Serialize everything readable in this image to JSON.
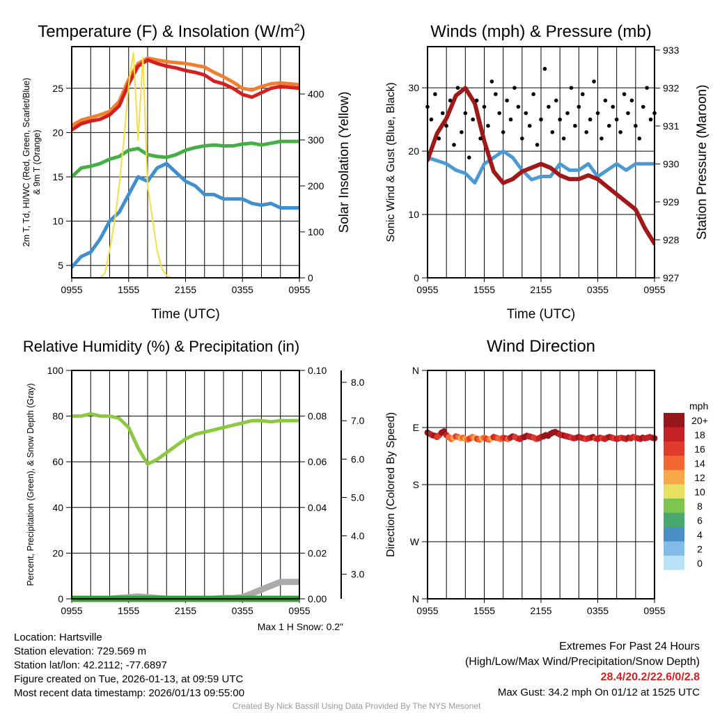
{
  "chart_data": [
    {
      "type": "line",
      "title": "Temperature (F) & Insolation (W/m²)",
      "title_main": "Temperature (F) & Insolation (W/m",
      "title_sup": "2",
      "title_end": ")",
      "xlabel": "Time (UTC)",
      "ylabel_line1": "2m T, Td, HI/WC (Red, Green, Scarlet/Blue)",
      "ylabel_line2": "& 9m T (Orange)",
      "y2label": "Solar Insolation (Yellow)",
      "xticks": [
        "0955",
        "1555",
        "2155",
        "0355",
        "0955"
      ],
      "yticks": [
        5,
        10,
        15,
        20,
        25
      ],
      "y2ticks": [
        0,
        100,
        200,
        300,
        400
      ],
      "ylim": [
        3.6,
        29.7
      ],
      "y2lim": [
        0,
        503
      ],
      "xlim": [
        0,
        24
      ],
      "series": [
        {
          "name": "9m T",
          "color": "#f08030",
          "axis": "left",
          "x_step": 1,
          "values": [
            20.8,
            21.4,
            21.7,
            22,
            22.4,
            23.5,
            26,
            27.8,
            28.4,
            28.2,
            28,
            27.9,
            27.8,
            27.6,
            27.4,
            26.8,
            26.3,
            25.7,
            25,
            24.8,
            25.2,
            25.5,
            25.6,
            25.5,
            25.4
          ]
        },
        {
          "name": "2m T",
          "color": "#d42020",
          "axis": "left",
          "x_step": 1,
          "values": [
            20.3,
            21,
            21.3,
            21.5,
            22,
            23,
            25.5,
            27.5,
            28.2,
            27.8,
            27.5,
            27.3,
            27,
            26.8,
            26.5,
            25.8,
            25.5,
            25,
            24.3,
            24,
            24.5,
            25,
            25.2,
            25.1,
            25
          ]
        },
        {
          "name": "Td",
          "color": "#44b044",
          "axis": "left",
          "x_step": 1,
          "values": [
            15,
            16,
            16.2,
            16.5,
            17,
            17.3,
            18,
            18.2,
            17.5,
            17.3,
            17.2,
            17.5,
            18,
            18.3,
            18.5,
            18.6,
            18.5,
            18.5,
            18.7,
            18.8,
            18.6,
            18.8,
            19,
            19,
            19
          ]
        },
        {
          "name": "WC",
          "color": "#4090d0",
          "axis": "left",
          "x_step": 1,
          "values": [
            4.8,
            6,
            6.5,
            8,
            10,
            11,
            13,
            15,
            14.5,
            16,
            16.5,
            15.5,
            14.5,
            14,
            13,
            13,
            12.5,
            12.5,
            12.5,
            12,
            11.8,
            12,
            11.5,
            11.5,
            11.5
          ]
        },
        {
          "name": "Solar",
          "color": "#f4e040",
          "axis": "right",
          "x_step": 0.5,
          "values": [
            0,
            0,
            0,
            0,
            0,
            0,
            0,
            10,
            60,
            120,
            200,
            300,
            420,
            490,
            300,
            480,
            200,
            130,
            60,
            20,
            5,
            0,
            0,
            0,
            0,
            0,
            0,
            0,
            0,
            0,
            0,
            0,
            0,
            0,
            0,
            0,
            0,
            0,
            0,
            0,
            0,
            0,
            0,
            0,
            0,
            0,
            0,
            0,
            0
          ]
        }
      ]
    },
    {
      "type": "line",
      "title": "Winds (mph) & Pressure (mb)",
      "xlabel": "Time (UTC)",
      "ylabel": "Sonic Wind & Gust (Blue, Black)",
      "y2label": "Station Pressure (Maroon)",
      "xticks": [
        "0955",
        "1555",
        "2155",
        "0355",
        "0955"
      ],
      "yticks": [
        0,
        10,
        20,
        30
      ],
      "y2ticks": [
        927,
        928,
        929,
        930,
        931,
        932,
        933
      ],
      "ylim": [
        0,
        36.5
      ],
      "y2lim": [
        927,
        933.09
      ],
      "xlim": [
        0,
        24
      ],
      "series": [
        {
          "name": "Sonic Wind",
          "color": "#4a9ad6",
          "axis": "left",
          "x_step": 1,
          "values": [
            19,
            18.5,
            18,
            17,
            16.5,
            15,
            18,
            19,
            20,
            19,
            17,
            15.5,
            16,
            16,
            18,
            17,
            17,
            18,
            16,
            17,
            18,
            17,
            18,
            18,
            18
          ]
        },
        {
          "name": "Pressure",
          "color": "#a01818",
          "axis": "right",
          "x_step": 1,
          "values": [
            930.1,
            930.8,
            931.2,
            931.8,
            932,
            931.6,
            930.6,
            929.8,
            929.5,
            929.6,
            929.8,
            929.9,
            930,
            929.9,
            929.7,
            929.6,
            929.6,
            929.7,
            929.6,
            929.4,
            929.2,
            929,
            928.8,
            928.3,
            927.9
          ]
        },
        {
          "name": "Gust",
          "color": "#000000",
          "axis": "left",
          "kind": "scatter",
          "x_step": 0.4,
          "values": [
            27,
            25,
            29,
            22,
            26,
            24,
            28,
            21,
            30,
            23,
            26,
            19,
            25,
            28,
            22,
            27,
            24,
            31,
            29,
            26,
            23,
            28,
            25,
            30,
            27,
            22,
            26,
            24,
            29,
            21,
            25,
            33,
            27,
            23,
            28,
            25,
            22,
            26,
            30,
            24,
            27,
            29,
            23,
            25,
            31,
            26,
            22,
            28,
            24,
            27,
            25,
            23,
            29,
            26,
            28,
            24,
            22,
            27,
            30,
            25,
            26
          ]
        }
      ]
    },
    {
      "type": "line",
      "title": "Relative Humidity (%) & Precipitation (in)",
      "ylabel": "Percent, Precipitation (Green), & Snow Depth (Gray)",
      "xticks": [
        "0955",
        "1555",
        "2155",
        "0355",
        "0955"
      ],
      "yticks": [
        0,
        20,
        40,
        60,
        80,
        100
      ],
      "y2ticks": [
        "0.00",
        "0.02",
        "0.04",
        "0.06",
        "0.08",
        "0.10"
      ],
      "y3ticks": [
        "3.0",
        "4.0",
        "5.0",
        "6.0",
        "7.0",
        "8.0"
      ],
      "ylim": [
        0,
        100
      ],
      "y2lim": [
        0,
        0.1
      ],
      "y3lim": [
        2.36,
        8.31
      ],
      "xlim": [
        0,
        24
      ],
      "note": "Max 1 H Snow: 0.2\"",
      "series": [
        {
          "name": "RH",
          "color": "#8cc840",
          "axis": "left",
          "x_step": 1,
          "values": [
            80,
            80,
            81,
            80,
            80,
            79,
            75,
            66,
            59,
            61,
            64,
            67,
            70,
            72,
            73,
            74,
            75,
            76,
            77,
            78,
            78,
            77.5,
            78,
            78,
            78
          ]
        },
        {
          "name": "Snow Depth",
          "color": "#aaaaaa",
          "axis": "y3",
          "x_step": 1,
          "values": [
            2.36,
            2.36,
            2.36,
            2.36,
            2.36,
            2.38,
            2.4,
            2.42,
            2.4,
            2.38,
            2.36,
            2.36,
            2.36,
            2.36,
            2.36,
            2.36,
            2.38,
            2.38,
            2.4,
            2.5,
            2.6,
            2.7,
            2.8,
            2.8,
            2.8
          ]
        },
        {
          "name": "Precipitation",
          "color": "#30a030",
          "axis": "right",
          "x_step": 1,
          "values": [
            0,
            0,
            0,
            0,
            0,
            0,
            0,
            0,
            0,
            0,
            0,
            0,
            0,
            0,
            0,
            0,
            0,
            0,
            0,
            0,
            0,
            0,
            0,
            0,
            0
          ]
        }
      ]
    },
    {
      "type": "scatter",
      "title": "Wind Direction",
      "ylabel": "Direction (Colored By Speed)",
      "xticks": [
        "0955",
        "1555",
        "2155",
        "0355",
        "0955"
      ],
      "yticks": [
        "N",
        "E",
        "S",
        "W",
        "N"
      ],
      "ylim": [
        0,
        360
      ],
      "xlim": [
        0,
        24
      ],
      "legend": {
        "title": "mph",
        "labels": [
          "20+",
          "18",
          "16",
          "14",
          "12",
          "10",
          "8",
          "6",
          "4",
          "2",
          "0"
        ],
        "colors": [
          "#96161a",
          "#c42026",
          "#e03a2c",
          "#f26630",
          "#f8a848",
          "#e8e060",
          "#80c450",
          "#48a870",
          "#4a8ec8",
          "#80bce6",
          "#b8e2f8"
        ]
      },
      "x_step": 0.25,
      "direction": [
        262,
        260,
        258,
        257,
        255,
        258,
        262,
        264,
        258,
        255,
        252,
        254,
        256,
        255,
        253,
        254,
        252,
        251,
        253,
        255,
        254,
        252,
        251,
        253,
        254,
        252,
        251,
        253,
        255,
        254,
        253,
        252,
        254,
        253,
        252,
        254,
        256,
        255,
        253,
        252,
        254,
        255,
        257,
        256,
        255,
        254,
        252,
        253,
        255,
        256,
        258,
        257,
        260,
        262,
        263,
        261,
        259,
        258,
        257,
        256,
        255,
        254,
        253,
        254,
        255,
        254,
        253,
        252,
        253,
        254,
        255,
        253,
        252,
        254,
        253,
        252,
        254,
        255,
        254,
        253,
        252,
        253,
        254,
        253,
        252,
        254,
        253,
        255,
        254,
        253,
        252,
        254,
        253,
        254,
        255,
        254,
        253
      ],
      "speed": [
        20,
        19,
        18,
        20,
        17,
        16,
        20,
        21,
        19,
        15,
        14,
        13,
        16,
        15,
        13,
        14,
        12,
        14,
        16,
        15,
        13,
        17,
        14,
        12,
        15,
        16,
        14,
        13,
        18,
        16,
        15,
        14,
        17,
        18,
        15,
        19,
        20,
        17,
        16,
        18,
        19,
        20,
        21,
        19,
        18,
        17,
        16,
        18,
        19,
        20,
        21,
        20,
        20,
        21,
        22,
        20,
        19,
        18,
        20,
        19,
        18,
        17,
        19,
        18,
        20,
        19,
        18,
        17,
        19,
        18,
        20,
        17,
        18,
        19,
        17,
        18,
        19,
        20,
        18,
        17,
        19,
        18,
        17,
        18,
        19,
        20,
        18,
        19,
        17,
        18,
        19,
        20,
        18,
        19,
        18,
        19,
        20
      ]
    }
  ],
  "info": {
    "location": "Location: Hartsville",
    "elevation": "Station elevation: 729.569 m",
    "latlon": "Station lat/lon: 42.2112; -77.6897",
    "created": "Figure created on Tue, 2026-01-13, at 09:59 UTC",
    "recent": "Most recent data timestamp: 2026/01/13 09:55:00",
    "extremes_title": "Extremes For Past 24 Hours",
    "extremes_sub": "(High/Low/Max Wind/Precipitation/Snow Depth)",
    "extremes_values": "28.4/20.2/22.6/0/2.8",
    "max_gust": "Max Gust: 34.2 mph On 01/12 at 1525 UTC",
    "credit": "Created By Nick Bassill Using Data Provided By The NYS Mesonet"
  }
}
